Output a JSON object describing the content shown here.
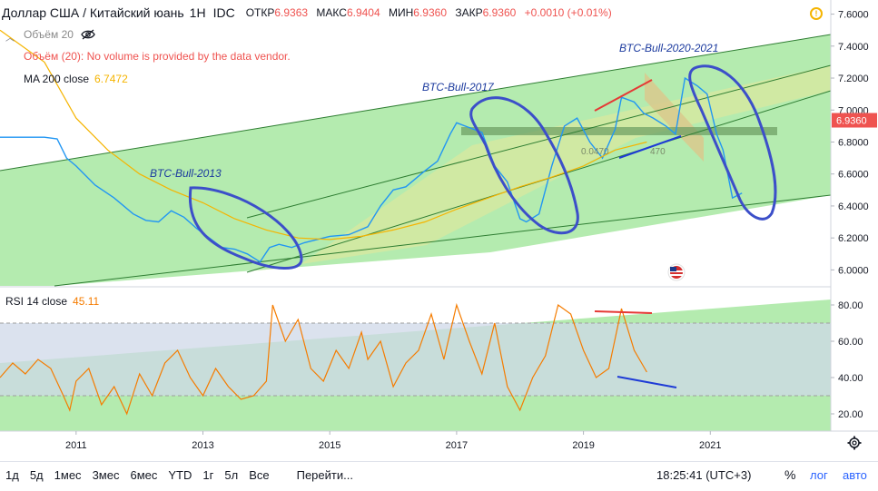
{
  "header": {
    "title": "Доллар США / Китайский юань",
    "resolution": "1H",
    "source": "IDC",
    "ohlc": [
      {
        "label": "ОТКР",
        "value": "6.9363"
      },
      {
        "label": "МАКС",
        "value": "6.9404"
      },
      {
        "label": "МИН",
        "value": "6.9360"
      },
      {
        "label": "ЗАКР",
        "value": "6.9360"
      },
      {
        "label": "",
        "value": "+0.0010 (+0.01%)"
      }
    ]
  },
  "legend": {
    "volume": "Объём 20",
    "volume_message": "Объём (20): No volume is provided by the data vendor.",
    "ma_label": "MA 200 close",
    "ma_value": "6.7472",
    "rsi_label": "RSI 14 close",
    "rsi_value": "45.11"
  },
  "chart_data": [
    {
      "type": "line",
      "title": "",
      "price_axis": [
        "7.6000",
        "7.4000",
        "7.2000",
        "7.0000",
        "6.8000",
        "6.6000",
        "6.4000",
        "6.2000",
        "6.0000"
      ],
      "ylim": [
        5.9,
        7.66
      ],
      "last_price": "6.9360",
      "last_price_color": "#ef5350",
      "x_axis": [
        "2011",
        "2013",
        "2015",
        "2017",
        "2019",
        "2021"
      ],
      "xlim": [
        2009.8,
        2022.9
      ],
      "series": [
        {
          "color": "#2196f3",
          "x": [
            2009.8,
            2010.2,
            2010.5,
            2010.7,
            2010.85,
            2011.0,
            2011.3,
            2011.6,
            2011.9,
            2012.1,
            2012.3,
            2012.5,
            2012.7,
            2012.9,
            2013.1,
            2013.3,
            2013.5,
            2013.7,
            2013.9,
            2014.05,
            2014.2,
            2014.4,
            2014.6,
            2014.8,
            2015.0,
            2015.3,
            2015.6,
            2015.8,
            2016.0,
            2016.2,
            2016.5,
            2016.7,
            2016.9,
            2017.0,
            2017.2,
            2017.4,
            2017.6,
            2017.8,
            2018.0,
            2018.1,
            2018.3,
            2018.5,
            2018.7,
            2018.9,
            2019.1,
            2019.3,
            2019.5,
            2019.6,
            2019.8,
            2019.95,
            2020.1,
            2020.3,
            2020.45,
            2020.6,
            2020.8,
            2020.95,
            2021.1,
            2021.2,
            2021.35,
            2021.5
          ],
          "y": [
            6.83,
            6.83,
            6.83,
            6.82,
            6.7,
            6.65,
            6.53,
            6.45,
            6.35,
            6.31,
            6.3,
            6.37,
            6.33,
            6.26,
            6.2,
            6.14,
            6.13,
            6.1,
            6.05,
            6.14,
            6.16,
            6.14,
            6.17,
            6.19,
            6.21,
            6.22,
            6.27,
            6.4,
            6.5,
            6.52,
            6.62,
            6.68,
            6.85,
            6.92,
            6.89,
            6.86,
            6.65,
            6.55,
            6.32,
            6.3,
            6.35,
            6.65,
            6.9,
            6.95,
            6.8,
            6.7,
            6.88,
            7.08,
            7.05,
            6.98,
            6.95,
            6.9,
            6.85,
            7.2,
            7.15,
            7.1,
            6.85,
            6.75,
            6.45,
            6.48
          ]
        },
        {
          "name": "MA 200 close",
          "color": "#f5b400",
          "x": [
            2009.8,
            2010.5,
            2011.0,
            2011.5,
            2012.0,
            2012.5,
            2013.0,
            2013.5,
            2014.0,
            2014.5,
            2015.0,
            2015.5,
            2016.0,
            2016.5,
            2017.0,
            2017.5,
            2018.0,
            2018.5,
            2019.0,
            2019.5,
            2020.0
          ],
          "y": [
            7.5,
            7.3,
            6.95,
            6.75,
            6.6,
            6.5,
            6.42,
            6.32,
            6.25,
            6.2,
            6.19,
            6.21,
            6.25,
            6.3,
            6.38,
            6.45,
            6.52,
            6.58,
            6.65,
            6.75,
            6.8
          ]
        }
      ],
      "annotations": [
        "BTC-Bull-2013",
        "BTC-Bull-2017",
        "BTC-Bull-2020-2021",
        "0.0470",
        "470"
      ]
    },
    {
      "type": "line",
      "title": "",
      "price_axis": [
        "80.00",
        "60.00",
        "40.00",
        "20.00"
      ],
      "ylim": [
        12,
        88
      ],
      "bands": [
        30,
        70
      ],
      "series": [
        {
          "name": "RSI 14 close",
          "color": "#f57c00",
          "x": [
            2009.8,
            2010.0,
            2010.2,
            2010.4,
            2010.6,
            2010.8,
            2010.9,
            2011.0,
            2011.2,
            2011.4,
            2011.6,
            2011.8,
            2012.0,
            2012.2,
            2012.4,
            2012.6,
            2012.8,
            2013.0,
            2013.2,
            2013.4,
            2013.6,
            2013.8,
            2014.0,
            2014.1,
            2014.3,
            2014.5,
            2014.7,
            2014.9,
            2015.1,
            2015.3,
            2015.5,
            2015.6,
            2015.8,
            2016.0,
            2016.2,
            2016.4,
            2016.6,
            2016.8,
            2017.0,
            2017.2,
            2017.4,
            2017.6,
            2017.8,
            2018.0,
            2018.2,
            2018.4,
            2018.6,
            2018.8,
            2019.0,
            2019.2,
            2019.4,
            2019.6,
            2019.8,
            2020.0
          ],
          "y": [
            40,
            48,
            42,
            50,
            45,
            30,
            22,
            38,
            45,
            25,
            35,
            20,
            42,
            30,
            48,
            55,
            40,
            30,
            45,
            35,
            28,
            30,
            38,
            80,
            60,
            72,
            45,
            38,
            55,
            45,
            65,
            50,
            60,
            35,
            48,
            55,
            75,
            50,
            80,
            60,
            42,
            70,
            35,
            22,
            40,
            52,
            80,
            75,
            55,
            40,
            45,
            78,
            55,
            43
          ]
        }
      ]
    }
  ],
  "toolbar": {
    "ranges": [
      "1д",
      "5д",
      "1мес",
      "3мес",
      "6мес",
      "YTD",
      "1г",
      "5л",
      "Все"
    ],
    "goto": "Перейти...",
    "clock": "18:25:41 (UTC+3)",
    "percent": "%",
    "log": "лог",
    "auto": "авто"
  },
  "colors": {
    "green_fill": "#a5e6a0",
    "channel_line": "#2e7d32",
    "circles": "#3c4fc9",
    "red_line": "#e53935",
    "blue_line": "#1e3bd6",
    "orange_box": "#d4b56a"
  }
}
